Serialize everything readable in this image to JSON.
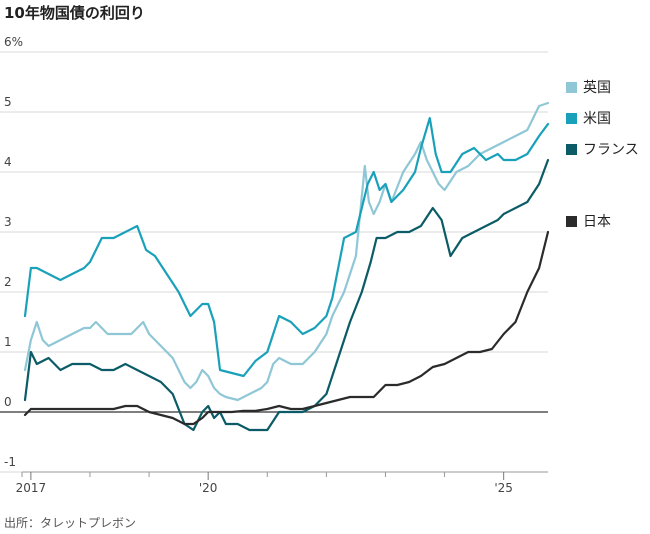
{
  "title": "10年物国債の利回り",
  "source": "出所：タレットプレボン",
  "chart_data": {
    "type": "line",
    "y_unit_label": "6%",
    "ylim": [
      -1,
      6
    ],
    "yticks": [
      "6%",
      "5",
      "4",
      "3",
      "2",
      "1",
      "0",
      "-1"
    ],
    "yticks_values": [
      6,
      5,
      4,
      3,
      2,
      1,
      0,
      -1
    ],
    "xlim": [
      2016.85,
      2025.75
    ],
    "xticks": [
      {
        "label": "2017",
        "x": 2017.0
      },
      {
        "label": "'20",
        "x": 2020.0
      },
      {
        "label": "'25",
        "x": 2025.0
      }
    ],
    "xminor": [
      2016.85,
      2018.0,
      2019.0,
      2021.0,
      2022.0,
      2023.0,
      2024.0
    ],
    "grid": true,
    "legend_position": "right",
    "series": [
      {
        "name": "英国",
        "color": "#8fc7d6",
        "x": [
          2016.9,
          2017.0,
          2017.1,
          2017.2,
          2017.3,
          2017.5,
          2017.7,
          2017.9,
          2018.0,
          2018.1,
          2018.3,
          2018.5,
          2018.7,
          2018.9,
          2019.0,
          2019.2,
          2019.4,
          2019.6,
          2019.7,
          2019.8,
          2019.9,
          2020.0,
          2020.1,
          2020.2,
          2020.3,
          2020.5,
          2020.7,
          2020.9,
          2021.0,
          2021.1,
          2021.2,
          2021.4,
          2021.6,
          2021.8,
          2022.0,
          2022.1,
          2022.3,
          2022.5,
          2022.65,
          2022.72,
          2022.8,
          2022.9,
          2023.0,
          2023.1,
          2023.3,
          2023.5,
          2023.6,
          2023.7,
          2023.8,
          2023.9,
          2024.0,
          2024.2,
          2024.4,
          2024.6,
          2024.8,
          2025.0,
          2025.2,
          2025.4,
          2025.6,
          2025.75
        ],
        "y": [
          0.7,
          1.2,
          1.5,
          1.2,
          1.1,
          1.2,
          1.3,
          1.4,
          1.4,
          1.5,
          1.3,
          1.3,
          1.3,
          1.5,
          1.3,
          1.1,
          0.9,
          0.5,
          0.4,
          0.5,
          0.7,
          0.6,
          0.4,
          0.3,
          0.25,
          0.2,
          0.3,
          0.4,
          0.5,
          0.8,
          0.9,
          0.8,
          0.8,
          1.0,
          1.3,
          1.6,
          2.0,
          2.6,
          4.1,
          3.5,
          3.3,
          3.5,
          3.8,
          3.5,
          4.0,
          4.3,
          4.5,
          4.2,
          4.0,
          3.8,
          3.7,
          4.0,
          4.1,
          4.3,
          4.4,
          4.5,
          4.6,
          4.7,
          5.1,
          5.15
        ]
      },
      {
        "name": "米国",
        "color": "#1aa1ba",
        "x": [
          2016.9,
          2017.0,
          2017.1,
          2017.3,
          2017.5,
          2017.7,
          2017.9,
          2018.0,
          2018.2,
          2018.4,
          2018.6,
          2018.8,
          2018.95,
          2019.1,
          2019.3,
          2019.5,
          2019.7,
          2019.9,
          2020.0,
          2020.1,
          2020.2,
          2020.4,
          2020.6,
          2020.8,
          2021.0,
          2021.1,
          2021.2,
          2021.4,
          2021.6,
          2021.8,
          2022.0,
          2022.1,
          2022.3,
          2022.5,
          2022.7,
          2022.8,
          2022.9,
          2023.0,
          2023.1,
          2023.3,
          2023.5,
          2023.6,
          2023.75,
          2023.85,
          2023.95,
          2024.1,
          2024.3,
          2024.5,
          2024.7,
          2024.9,
          2025.0,
          2025.2,
          2025.4,
          2025.6,
          2025.75
        ],
        "y": [
          1.6,
          2.4,
          2.4,
          2.3,
          2.2,
          2.3,
          2.4,
          2.5,
          2.9,
          2.9,
          3.0,
          3.1,
          2.7,
          2.6,
          2.3,
          2.0,
          1.6,
          1.8,
          1.8,
          1.5,
          0.7,
          0.65,
          0.6,
          0.85,
          1.0,
          1.3,
          1.6,
          1.5,
          1.3,
          1.4,
          1.6,
          1.9,
          2.9,
          3.0,
          3.8,
          4.0,
          3.7,
          3.8,
          3.5,
          3.7,
          4.0,
          4.4,
          4.9,
          4.3,
          4.0,
          4.0,
          4.3,
          4.4,
          4.2,
          4.3,
          4.2,
          4.2,
          4.3,
          4.6,
          4.8
        ]
      },
      {
        "name": "フランス",
        "color": "#0b5c66",
        "x": [
          2016.9,
          2017.0,
          2017.1,
          2017.3,
          2017.5,
          2017.7,
          2017.9,
          2018.0,
          2018.2,
          2018.4,
          2018.6,
          2018.8,
          2019.0,
          2019.2,
          2019.4,
          2019.6,
          2019.75,
          2019.9,
          2020.0,
          2020.1,
          2020.2,
          2020.3,
          2020.5,
          2020.7,
          2020.9,
          2021.0,
          2021.2,
          2021.4,
          2021.6,
          2021.8,
          2022.0,
          2022.1,
          2022.2,
          2022.4,
          2022.6,
          2022.75,
          2022.85,
          2023.0,
          2023.2,
          2023.4,
          2023.6,
          2023.8,
          2023.95,
          2024.1,
          2024.3,
          2024.5,
          2024.7,
          2024.9,
          2025.0,
          2025.2,
          2025.4,
          2025.6,
          2025.75
        ],
        "y": [
          0.2,
          1.0,
          0.8,
          0.9,
          0.7,
          0.8,
          0.8,
          0.8,
          0.7,
          0.7,
          0.8,
          0.7,
          0.6,
          0.5,
          0.3,
          -0.2,
          -0.3,
          0.0,
          0.1,
          -0.1,
          0.0,
          -0.2,
          -0.2,
          -0.3,
          -0.3,
          -0.3,
          0.0,
          0.0,
          0.0,
          0.1,
          0.3,
          0.6,
          0.9,
          1.5,
          2.0,
          2.5,
          2.9,
          2.9,
          3.0,
          3.0,
          3.1,
          3.4,
          3.2,
          2.6,
          2.9,
          3.0,
          3.1,
          3.2,
          3.3,
          3.4,
          3.5,
          3.8,
          4.2
        ]
      },
      {
        "name": "日本",
        "color": "#2b2b2b",
        "x": [
          2016.9,
          2017.0,
          2017.2,
          2017.4,
          2017.6,
          2017.8,
          2018.0,
          2018.2,
          2018.4,
          2018.6,
          2018.8,
          2019.0,
          2019.2,
          2019.4,
          2019.6,
          2019.75,
          2019.9,
          2020.0,
          2020.2,
          2020.4,
          2020.6,
          2020.8,
          2021.0,
          2021.2,
          2021.4,
          2021.6,
          2021.8,
          2022.0,
          2022.2,
          2022.4,
          2022.6,
          2022.8,
          2023.0,
          2023.2,
          2023.4,
          2023.6,
          2023.8,
          2024.0,
          2024.2,
          2024.4,
          2024.6,
          2024.8,
          2025.0,
          2025.2,
          2025.4,
          2025.6,
          2025.75
        ],
        "y": [
          -0.05,
          0.05,
          0.05,
          0.05,
          0.05,
          0.05,
          0.05,
          0.05,
          0.05,
          0.1,
          0.1,
          0.0,
          -0.05,
          -0.1,
          -0.2,
          -0.2,
          -0.1,
          0.0,
          0.0,
          0.0,
          0.02,
          0.02,
          0.05,
          0.1,
          0.05,
          0.05,
          0.1,
          0.15,
          0.2,
          0.25,
          0.25,
          0.25,
          0.45,
          0.45,
          0.5,
          0.6,
          0.75,
          0.8,
          0.9,
          1.0,
          1.0,
          1.05,
          1.3,
          1.5,
          2.0,
          2.4,
          3.0
        ]
      }
    ]
  }
}
